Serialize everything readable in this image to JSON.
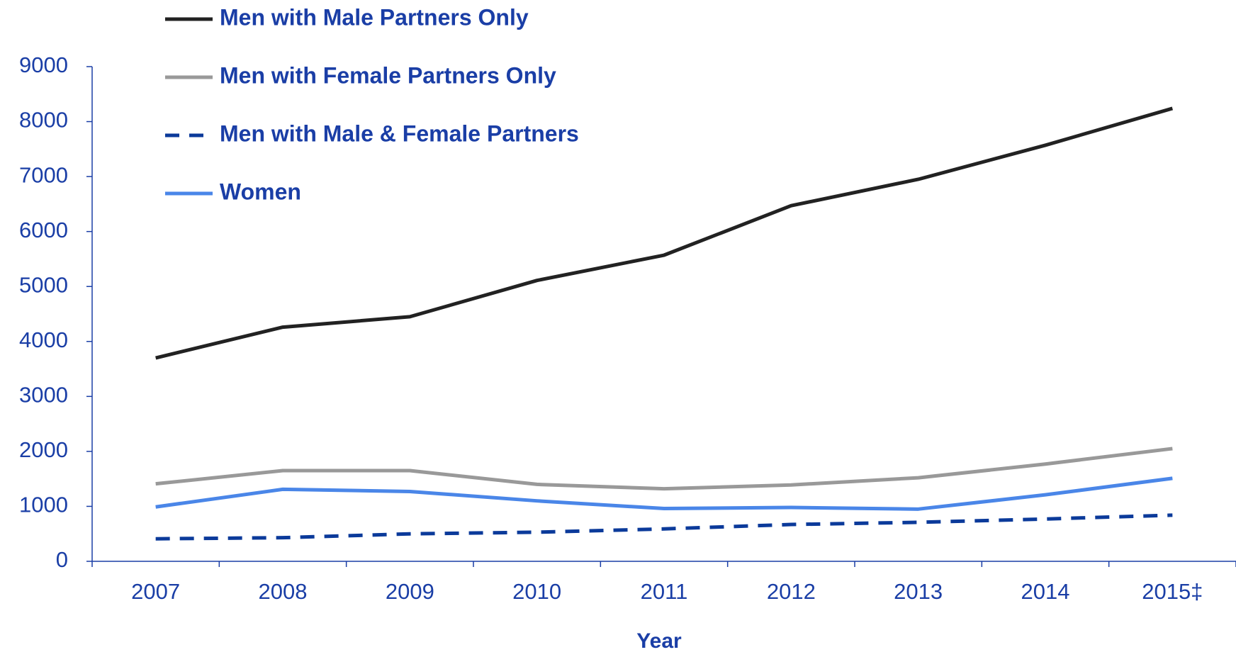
{
  "chart_data": {
    "type": "line",
    "x_label": "Year",
    "categories": [
      "2007",
      "2008",
      "2009",
      "2010",
      "2011",
      "2012",
      "2013",
      "2014",
      "2015‡"
    ],
    "series": [
      {
        "name": "Men with Male Partners Only",
        "color": "#222222",
        "dash": false,
        "values": [
          3700,
          4260,
          4450,
          5110,
          5570,
          6470,
          6950,
          7570,
          8240
        ]
      },
      {
        "name": "Men with Female Partners Only",
        "color": "#999999",
        "dash": false,
        "values": [
          1410,
          1650,
          1650,
          1400,
          1320,
          1390,
          1520,
          1770,
          2050
        ]
      },
      {
        "name": "Men with Male & Female Partners",
        "color": "#0b3a9a",
        "dash": true,
        "values": [
          410,
          430,
          500,
          530,
          590,
          670,
          710,
          770,
          840
        ]
      },
      {
        "name": "Women",
        "color": "#4a86e8",
        "dash": false,
        "values": [
          990,
          1310,
          1270,
          1100,
          960,
          980,
          950,
          1210,
          1510
        ]
      }
    ],
    "ylim": [
      0,
      9000
    ],
    "yticks": [
      0,
      1000,
      2000,
      3000,
      4000,
      5000,
      6000,
      7000,
      8000,
      9000
    ]
  }
}
